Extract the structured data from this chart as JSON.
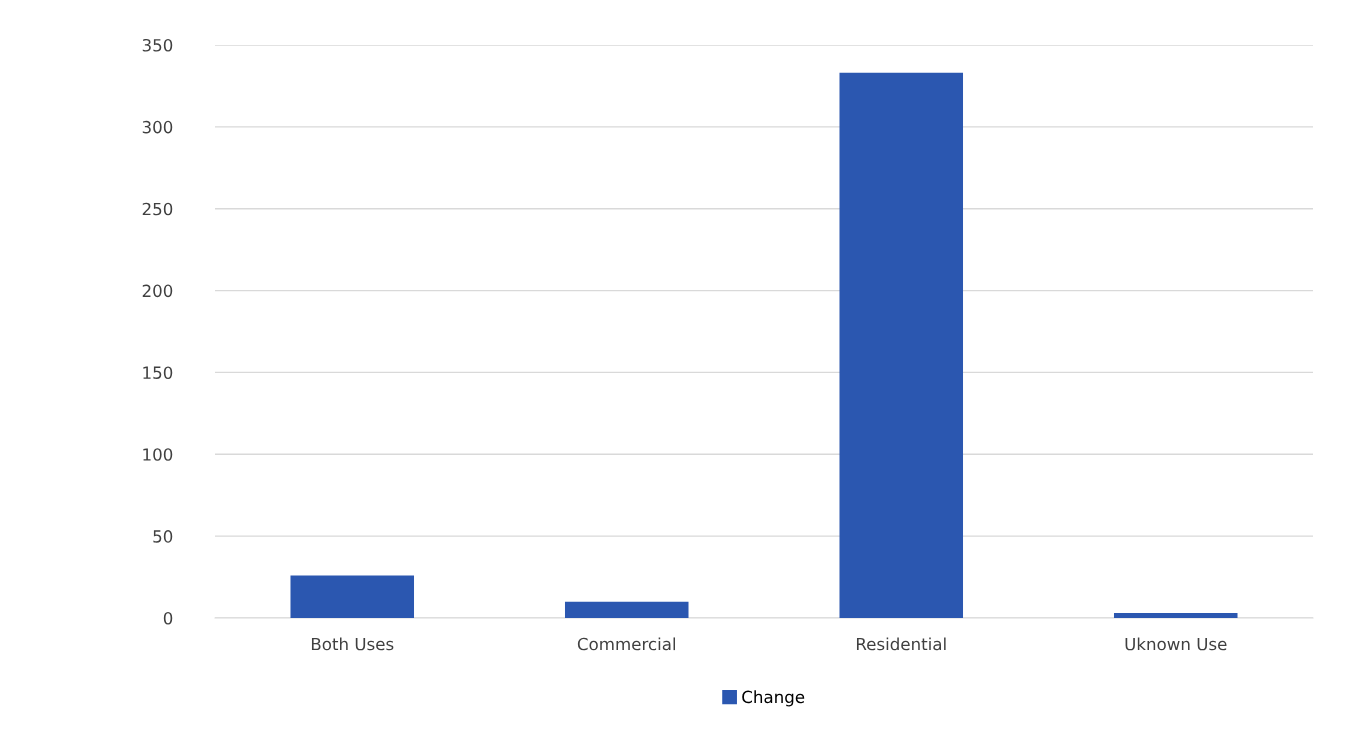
{
  "chart_data": {
    "type": "bar",
    "categories": [
      "Both Uses",
      "Commercial",
      "Residential",
      "Uknown Use"
    ],
    "series": [
      {
        "name": "Change",
        "color": "#2b57b0",
        "values": [
          26,
          10,
          333,
          3
        ]
      }
    ],
    "ylim": [
      0,
      350
    ],
    "yticks": [
      0,
      50,
      100,
      150,
      200,
      250,
      300,
      350
    ],
    "grid": "y",
    "legend": "bottom"
  }
}
